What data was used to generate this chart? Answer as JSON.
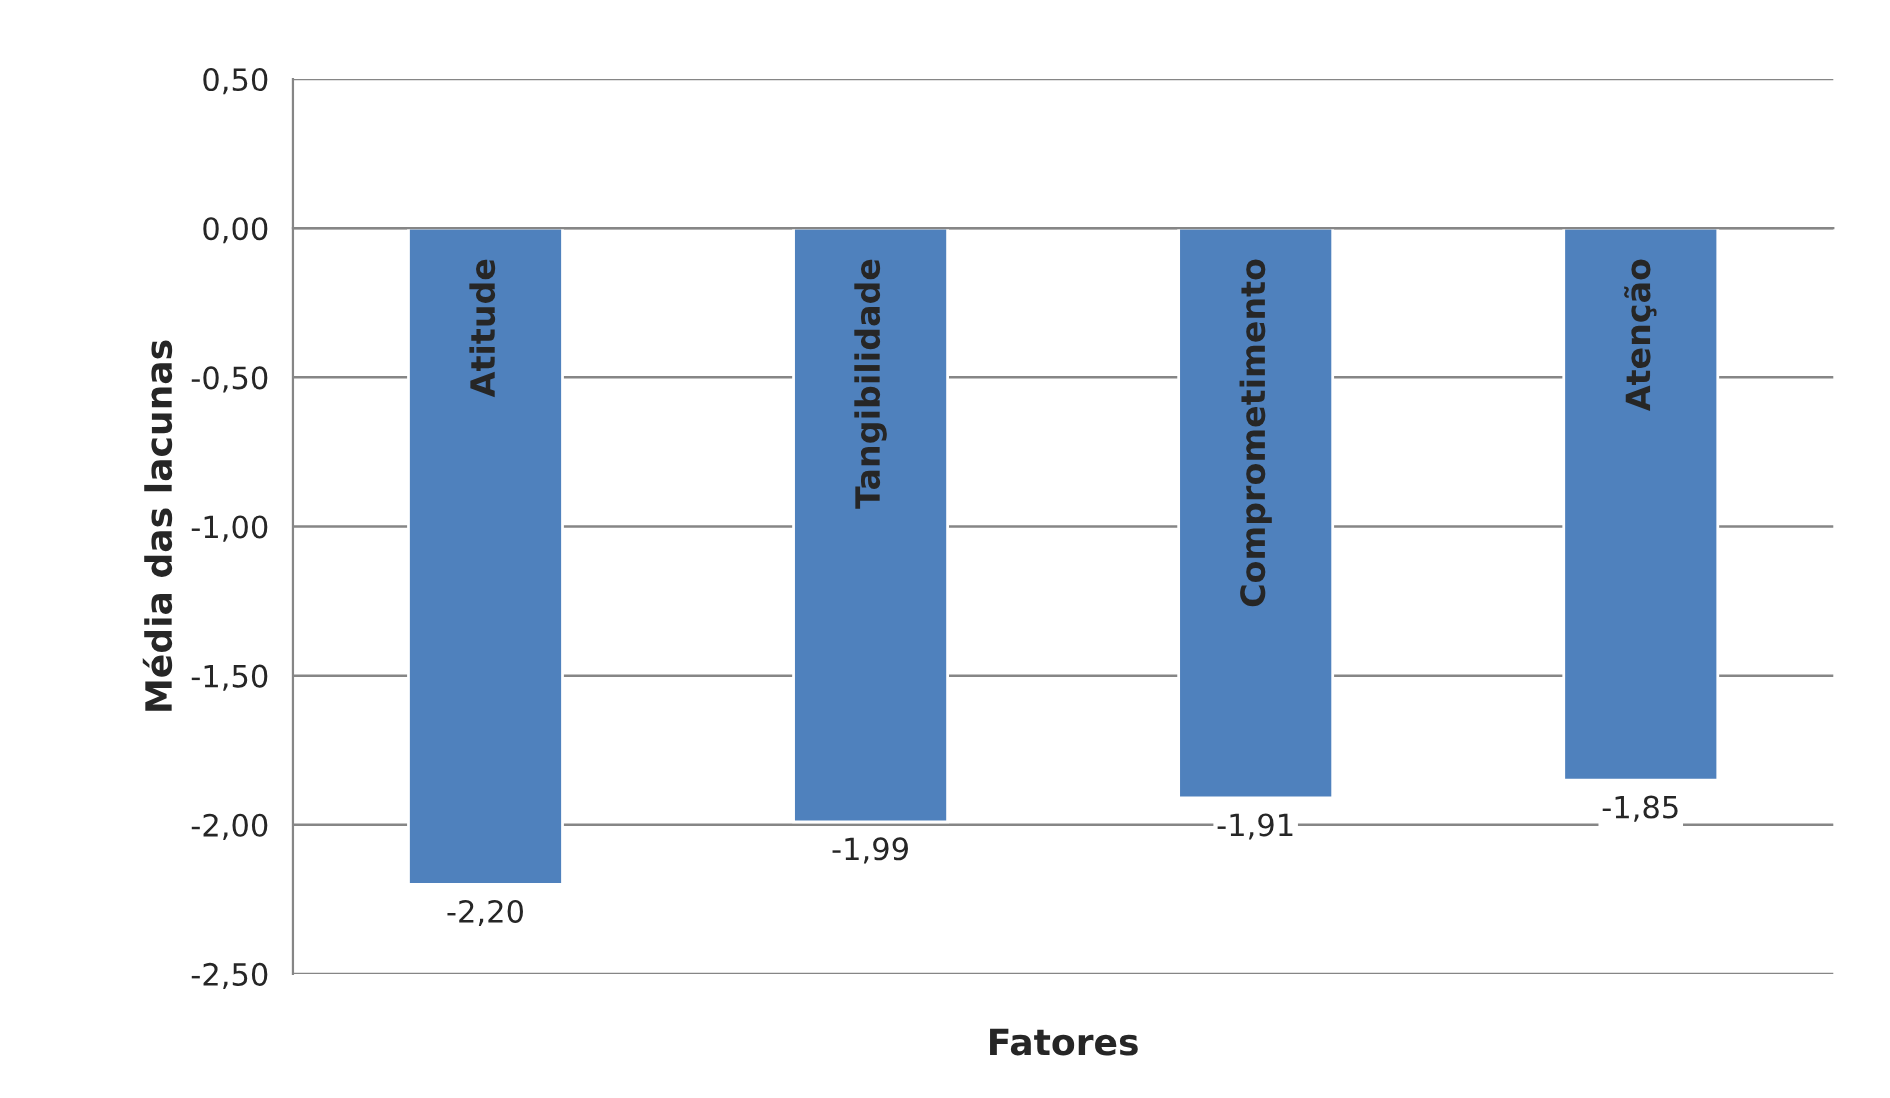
{
  "chart_data": {
    "type": "bar",
    "xlabel": "Fatores",
    "ylabel": "Média das lacunas",
    "categories": [
      "Atitude",
      "Tangibilidade",
      "Comprometimento",
      "Atenção"
    ],
    "values": [
      -2.2,
      -1.99,
      -1.91,
      -1.85
    ],
    "value_labels": [
      "-2,20",
      "-1,99",
      "-1,91",
      "-1,85"
    ],
    "color": "#4f81bd",
    "ylim": [
      -2.5,
      0.5
    ],
    "yticks": [
      {
        "value": -2.5,
        "label": "-2,50"
      },
      {
        "value": -2.0,
        "label": "-2,00"
      },
      {
        "value": -1.5,
        "label": "-1,50"
      },
      {
        "value": -1.0,
        "label": "-1,00"
      },
      {
        "value": -0.5,
        "label": "-0,50"
      },
      {
        "value": 0.0,
        "label": "0,00"
      },
      {
        "value": 0.5,
        "label": "0,50"
      }
    ],
    "grid": "y",
    "legend": false
  }
}
